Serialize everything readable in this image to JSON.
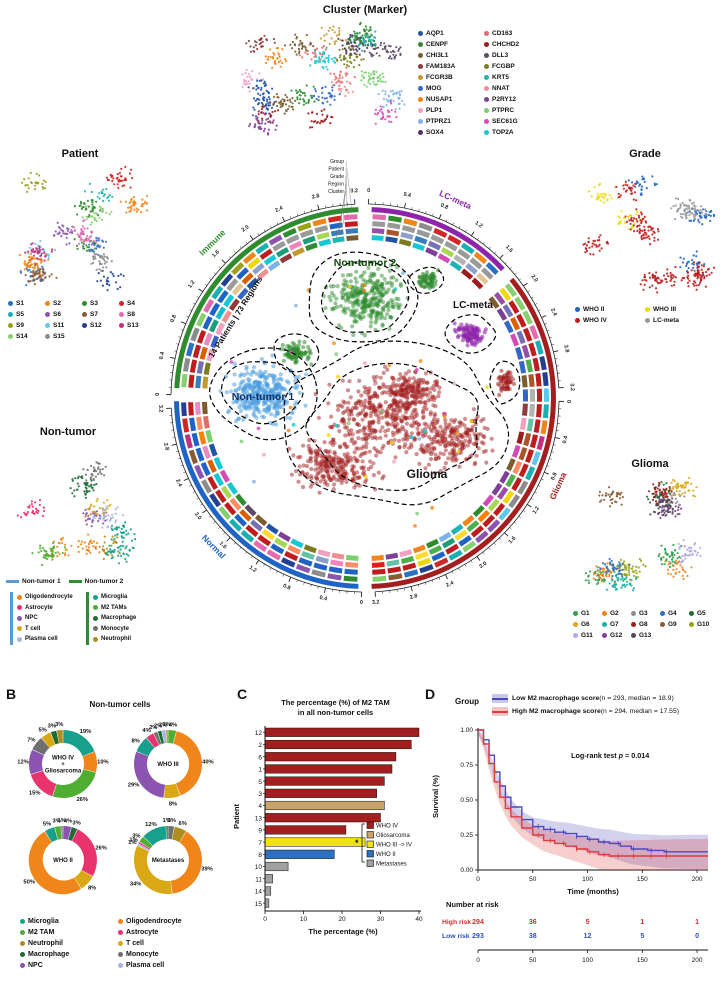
{
  "panel_a": {
    "cluster_marker": {
      "title": "Cluster (Marker)",
      "legend": [
        {
          "label": "AQP1",
          "color": "#2155a3"
        },
        {
          "label": "CD163",
          "color": "#e06a6a"
        },
        {
          "label": "CENPF",
          "color": "#2e8b2e"
        },
        {
          "label": "CHCHD2",
          "color": "#9e1b1b"
        },
        {
          "label": "CHI3L1",
          "color": "#7a5c2e"
        },
        {
          "label": "DLL3",
          "color": "#5d4a66"
        },
        {
          "label": "FAM183A",
          "color": "#8e3b3b"
        },
        {
          "label": "FCGBP",
          "color": "#7c7c1f"
        },
        {
          "label": "FCGR3B",
          "color": "#c09a2a"
        },
        {
          "label": "KRT5",
          "color": "#1fb3b3"
        },
        {
          "label": "MOG",
          "color": "#3566c4"
        },
        {
          "label": "NNAT",
          "color": "#ef8f8f"
        },
        {
          "label": "NUSAP1",
          "color": "#f08519"
        },
        {
          "label": "P2RY12",
          "color": "#7d3f98"
        },
        {
          "label": "PLP1",
          "color": "#f2a0c0"
        },
        {
          "label": "PTPRC",
          "color": "#79d06f"
        },
        {
          "label": "PTPRZ1",
          "color": "#7fb3e8"
        },
        {
          "label": "SEC61G",
          "color": "#d44bb7"
        },
        {
          "label": "SOX4",
          "color": "#513363"
        },
        {
          "label": "TOP2A",
          "color": "#15c9d4"
        }
      ]
    },
    "patient": {
      "title": "Patient",
      "legend": [
        {
          "label": "S1",
          "color": "#2d6fc0"
        },
        {
          "label": "S2",
          "color": "#f08519"
        },
        {
          "label": "S3",
          "color": "#2e8b2e"
        },
        {
          "label": "S4",
          "color": "#cf2626"
        },
        {
          "label": "S5",
          "color": "#18b0b0"
        },
        {
          "label": "S6",
          "color": "#8a54b0"
        },
        {
          "label": "S7",
          "color": "#8a5a33"
        },
        {
          "label": "S8",
          "color": "#e46aae"
        },
        {
          "label": "S9",
          "color": "#9aa018"
        },
        {
          "label": "S11",
          "color": "#5fc7ee"
        },
        {
          "label": "S12",
          "color": "#23408f"
        },
        {
          "label": "S13",
          "color": "#c22f7e"
        },
        {
          "label": "S14",
          "color": "#86d06f"
        },
        {
          "label": "S15",
          "color": "#8c8c8c"
        }
      ]
    },
    "grade": {
      "title": "Grade",
      "legend": [
        {
          "label": "WHO II",
          "color": "#1f63c4"
        },
        {
          "label": "WHO III",
          "color": "#f0d808"
        },
        {
          "label": "WHO IV",
          "color": "#bf1d1d"
        },
        {
          "label": "LC-meta",
          "color": "#9a9a9a"
        }
      ]
    },
    "glioma": {
      "title": "Glioma",
      "legend": [
        {
          "label": "G1",
          "color": "#2e9e4f"
        },
        {
          "label": "G2",
          "color": "#f08519"
        },
        {
          "label": "G3",
          "color": "#8c8c8c"
        },
        {
          "label": "G4",
          "color": "#2d6fc0"
        },
        {
          "label": "G5",
          "color": "#1e6b37"
        },
        {
          "label": "G6",
          "color": "#d9a814"
        },
        {
          "label": "G7",
          "color": "#18b0a0"
        },
        {
          "label": "G8",
          "color": "#9e1b1b"
        },
        {
          "label": "G9",
          "color": "#8a5a33"
        },
        {
          "label": "G10",
          "color": "#9aa018"
        },
        {
          "label": "G11",
          "color": "#b4a7e5"
        },
        {
          "label": "G12",
          "color": "#7d3f98"
        },
        {
          "label": "G13",
          "color": "#4d4d4d"
        }
      ]
    },
    "nontumor": {
      "title": "Non-tumor",
      "groups": [
        {
          "label": "Non-tumor 1",
          "color": "#5a9bd5"
        },
        {
          "label": "Non-tumor 2",
          "color": "#2e8b2e"
        }
      ],
      "cells_left": [
        {
          "label": "Oligodendrocyte",
          "color": "#f08519"
        },
        {
          "label": "Astrocyte",
          "color": "#e8336d"
        },
        {
          "label": "NPC",
          "color": "#8a54b0"
        },
        {
          "label": "T cell",
          "color": "#d9a814"
        },
        {
          "label": "Plasma cell",
          "color": "#aab4e0"
        }
      ],
      "cells_right": [
        {
          "label": "Microglia",
          "color": "#18a08c"
        },
        {
          "label": "M2 TAMs",
          "color": "#4fae32"
        },
        {
          "label": "Macrophage",
          "color": "#1e6b37"
        },
        {
          "label": "Monocyte",
          "color": "#6f6f6f"
        },
        {
          "label": "Neutrophil",
          "color": "#b08d1f"
        }
      ]
    },
    "circos": {
      "stats_text": "14 Patients | 73 Regions",
      "ring_labels": [
        "Group",
        "Patient",
        "Grade",
        "Region",
        "Cluster"
      ],
      "axis_ticks": [
        "0",
        "0.4",
        "0.8",
        "1.2",
        "1.6",
        "2.0",
        "2.4",
        "2.8",
        "3.2"
      ],
      "sectors": [
        {
          "label": "Immune",
          "color": "#2e8b2e",
          "a0": 183,
          "a1": 268
        },
        {
          "label": "LC-meta",
          "color": "#8e24aa",
          "a0": 272,
          "a1": 317
        },
        {
          "label": "Glioma",
          "color": "#a31f1f",
          "a0": 321,
          "a1": 448
        },
        {
          "label": "Normal",
          "color": "#1f63c4",
          "a0": 92,
          "a1": 179
        }
      ],
      "cluster_labels": [
        {
          "label": "Non-tumor 2",
          "color": "#14470f"
        },
        {
          "label": "LC-meta",
          "color": "#111111"
        },
        {
          "label": "Non-tumor 1",
          "color": "#0d2f66"
        },
        {
          "label": "Glioma",
          "color": "#111111"
        }
      ],
      "region_palette": [
        "#e41a1c",
        "#377eb8",
        "#4daf4a",
        "#984ea3",
        "#ff7f00",
        "#ffd92f",
        "#a65628",
        "#f781bf",
        "#17becf",
        "#66c2a5",
        "#fc8d62",
        "#8da0cb",
        "#e78ac3",
        "#a6d854",
        "#e5c494",
        "#b3b3b3",
        "#1b9e77",
        "#d95f02",
        "#7570b3",
        "#15c9d4"
      ],
      "misc_dot_colors": [
        "#15c9d4",
        "#f2a0c0",
        "#f0d808",
        "#7fb3e8",
        "#79d06f",
        "#f08519",
        "#d44bb7"
      ]
    }
  },
  "panel_b": {
    "label": "B",
    "title": "Non-tumor cells",
    "cell_colors": {
      "Microglia": "#18a08c",
      "M2 TAM": "#4fae32",
      "Neutrophil": "#b08d1f",
      "Macrophage": "#1e6b37",
      "NPC": "#8a54b0",
      "Oligodendrocyte": "#f08519",
      "Astrocyte": "#e8336d",
      "T cell": "#d9a814",
      "Monocyte": "#6f6f6f",
      "Plasma cell": "#aab4e0"
    },
    "legend_left": [
      "Microglia",
      "M2 TAM",
      "Neutrophil",
      "Macrophage",
      "NPC"
    ],
    "legend_right": [
      "Oligodendrocyte",
      "Astrocyte",
      "T cell",
      "Monocyte",
      "Plasma cell"
    ],
    "donuts": [
      {
        "name_lines": [
          "WHO IV",
          "+",
          "Gliosarcoma"
        ],
        "segments": [
          {
            "cell": "Microglia",
            "pct": 19
          },
          {
            "cell": "Oligodendrocyte",
            "pct": 10
          },
          {
            "cell": "M2 TAM",
            "pct": 26
          },
          {
            "cell": "Astrocyte",
            "pct": 15
          },
          {
            "cell": "NPC",
            "pct": 12
          },
          {
            "cell": "Monocyte",
            "pct": 7
          },
          {
            "cell": "T cell",
            "pct": 5
          },
          {
            "cell": "Macrophage",
            "pct": 3
          },
          {
            "cell": "Neutrophil",
            "pct": 3
          }
        ]
      },
      {
        "name_lines": [
          "WHO III"
        ],
        "segments": [
          {
            "cell": "M2 TAM",
            "pct": 4
          },
          {
            "cell": "Oligodendrocyte",
            "pct": 40
          },
          {
            "cell": "T cell",
            "pct": 8
          },
          {
            "cell": "NPC",
            "pct": 29
          },
          {
            "cell": "Microglia",
            "pct": 8
          },
          {
            "cell": "Astrocyte",
            "pct": 4
          },
          {
            "cell": "Monocyte",
            "pct": 2
          },
          {
            "cell": "Macrophage",
            "pct": 2
          },
          {
            "cell": "Plasma cell",
            "pct": 2
          },
          {
            "cell": "Neutrophil",
            "pct": 1
          }
        ]
      },
      {
        "name_lines": [
          "WHO II"
        ],
        "segments": [
          {
            "cell": "NPC",
            "pct": 4
          },
          {
            "cell": "Macrophage",
            "pct": 3
          },
          {
            "cell": "Astrocyte",
            "pct": 26
          },
          {
            "cell": "T cell",
            "pct": 8
          },
          {
            "cell": "Oligodendrocyte",
            "pct": 50
          },
          {
            "cell": "Microglia",
            "pct": 5
          },
          {
            "cell": "M2 TAM",
            "pct": 3
          },
          {
            "cell": "Monocyte",
            "pct": 1
          }
        ]
      },
      {
        "name_lines": [
          "Metastases"
        ],
        "segments": [
          {
            "cell": "Monocyte",
            "pct": 3
          },
          {
            "cell": "Neutrophil",
            "pct": 6
          },
          {
            "cell": "Oligodendrocyte",
            "pct": 39
          },
          {
            "cell": "T cell",
            "pct": 34
          },
          {
            "cell": "Plasma cell",
            "pct": 1
          },
          {
            "cell": "Astrocyte",
            "pct": 1
          },
          {
            "cell": "M2 TAM",
            "pct": 3
          },
          {
            "cell": "Microglia",
            "pct": 12
          },
          {
            "cell": "Macrophage",
            "pct": 1
          }
        ]
      }
    ]
  },
  "panel_c": {
    "label": "C",
    "title_line1": "The percentage (%) of  M2 TAM",
    "title_line2": "in all non-tumor cells",
    "ylabel": "Patient",
    "xlabel": "The percentage (%)",
    "xticks": [
      0,
      10,
      20,
      30,
      40
    ],
    "sig_label": "*",
    "grade_colors": {
      "WHO IV": "#a31f1f",
      "Gliosarcoma": "#c8a46a",
      "WHO III -> IV": "#efe410",
      "WHO II": "#2d6fc0",
      "Metastases": "#a0a0a0"
    },
    "legend": [
      "WHO IV",
      "Gliosarcoma",
      "WHO III -> IV",
      "WHO II",
      "Metastases"
    ],
    "chart_data": {
      "type": "bar",
      "categories": [
        "12",
        "2",
        "6",
        "1",
        "5",
        "3",
        "4",
        "13",
        "9",
        "7",
        "8",
        "10",
        "11",
        "14",
        "15"
      ],
      "values": [
        40,
        38,
        34,
        33,
        31,
        29,
        31,
        30,
        21,
        26,
        18,
        6,
        2,
        1.5,
        1
      ],
      "groups": [
        "WHO IV",
        "WHO IV",
        "WHO IV",
        "WHO IV",
        "WHO IV",
        "WHO IV",
        "Gliosarcoma",
        "WHO IV",
        "WHO IV",
        "WHO III -> IV",
        "WHO II",
        "Metastases",
        "Metastases",
        "Metastases",
        "Metastases"
      ],
      "xlim": [
        0,
        40
      ]
    }
  },
  "panel_d": {
    "label": "D",
    "legend_title": "Group",
    "legend": [
      {
        "label": "Low M2 macrophage score",
        "sub": " (n = 293, median = 18.9)",
        "color": "#4d49bd"
      },
      {
        "label": "High M2 macrophage score",
        "sub": " (n = 294, median = 17.55)",
        "color": "#e03b3b"
      }
    ],
    "annotation": {
      "prefix": "Log-rank test ",
      "p": "p",
      "suffix": " = 0.014"
    },
    "ylabel": "Survival (%)",
    "xlabel": "Time (months)",
    "yticks": [
      "0.00",
      "0.25",
      "0.50",
      "0.75",
      "1.00"
    ],
    "xticks": [
      0,
      50,
      100,
      150,
      200
    ],
    "risk_title": "Number at risk",
    "risk_rows": [
      {
        "label": "High risk",
        "color": "#d42b2b",
        "values": [
          "294",
          "36",
          "5",
          "1",
          "1"
        ]
      },
      {
        "label": "Low risk",
        "color": "#2d4fc0",
        "values": [
          "293",
          "38",
          "12",
          "5",
          "0"
        ]
      }
    ],
    "chart_data": {
      "type": "line",
      "series": [
        {
          "name": "Low M2 macrophage score",
          "color": "#4d49bd",
          "x": [
            0,
            5,
            10,
            15,
            20,
            25,
            30,
            40,
            50,
            60,
            70,
            80,
            90,
            100,
            110,
            120,
            130,
            140,
            155,
            170,
            210
          ],
          "y": [
            1,
            0.93,
            0.82,
            0.7,
            0.6,
            0.52,
            0.45,
            0.36,
            0.31,
            0.29,
            0.27,
            0.26,
            0.24,
            0.22,
            0.2,
            0.19,
            0.17,
            0.15,
            0.14,
            0.13,
            0.13
          ]
        },
        {
          "name": "High M2 macrophage score",
          "color": "#e03b3b",
          "x": [
            0,
            5,
            10,
            15,
            20,
            25,
            30,
            40,
            50,
            60,
            70,
            80,
            90,
            100,
            110,
            120,
            140,
            170,
            210
          ],
          "y": [
            1,
            0.9,
            0.76,
            0.63,
            0.52,
            0.44,
            0.38,
            0.3,
            0.25,
            0.21,
            0.19,
            0.17,
            0.15,
            0.13,
            0.11,
            0.1,
            0.1,
            0.1,
            0.1
          ]
        }
      ],
      "xlim": [
        0,
        210
      ],
      "ylim": [
        0,
        1
      ]
    }
  }
}
